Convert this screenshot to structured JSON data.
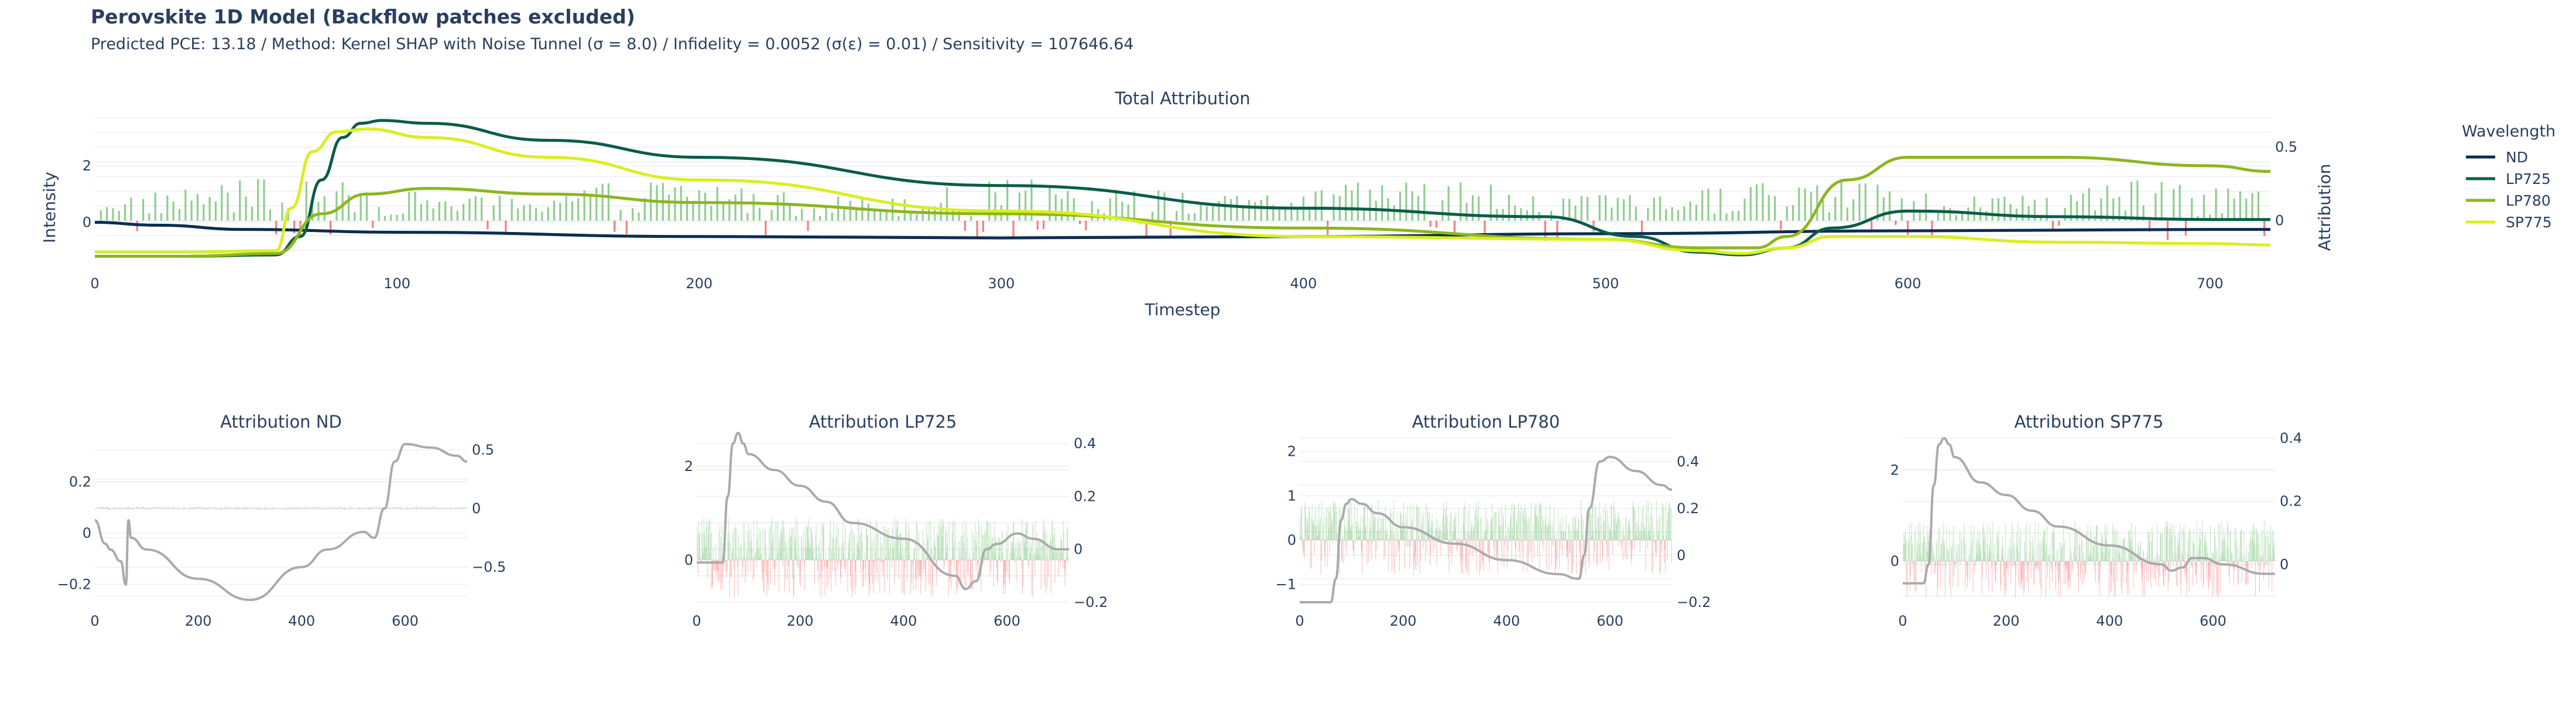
{
  "header": {
    "title": "Perovskite 1D Model (Backflow patches excluded)",
    "subtitle": "Predicted PCE: 13.18 / Method: Kernel SHAP with Noise Tunnel (σ = 8.0) / Infidelity = 0.0052 (σ(ε) = 0.01) / Sensitivity = 107646.64"
  },
  "legend": {
    "title": "Wavelength",
    "position": "right",
    "items": [
      {
        "name": "ND",
        "color": "#0b2d4f"
      },
      {
        "name": "LP725",
        "color": "#0a5c4a"
      },
      {
        "name": "LP780",
        "color": "#8db51f"
      },
      {
        "name": "SP775",
        "color": "#d9ef1e"
      }
    ]
  },
  "colors": {
    "positive_bar": "#7cc47a",
    "negative_bar": "#f06a6a",
    "attribution_line": "#aaaaaa",
    "grid": "#ebedf2"
  },
  "chart_data": [
    {
      "type": "line",
      "title": "Total Attribution",
      "xlabel": "Timestep",
      "ylabel": "Intensity",
      "y2label": "Attribution",
      "xlim": [
        0,
        720
      ],
      "ylim": [
        -1.5,
        3.8
      ],
      "y2lim": [
        -0.3,
        0.72
      ],
      "xticks": [
        0,
        100,
        200,
        300,
        400,
        500,
        600,
        700
      ],
      "yticks": [
        0,
        2
      ],
      "y2ticks": [
        0,
        0.5
      ],
      "grid": true,
      "series": [
        {
          "name": "ND",
          "x": [
            0,
            20,
            50,
            100,
            200,
            300,
            400,
            500,
            600,
            700,
            720
          ],
          "values": [
            0.0,
            -0.1,
            -0.25,
            -0.35,
            -0.5,
            -0.55,
            -0.5,
            -0.4,
            -0.3,
            -0.25,
            -0.25
          ]
        },
        {
          "name": "LP725",
          "x": [
            0,
            30,
            60,
            68,
            75,
            82,
            88,
            95,
            110,
            150,
            200,
            300,
            400,
            480,
            510,
            530,
            545,
            560,
            575,
            600,
            650,
            700,
            720
          ],
          "values": [
            -1.2,
            -1.2,
            -1.15,
            -0.5,
            1.5,
            3.0,
            3.5,
            3.6,
            3.5,
            2.9,
            2.3,
            1.3,
            0.5,
            0.2,
            -0.5,
            -1.05,
            -1.15,
            -0.9,
            -0.2,
            0.4,
            0.2,
            0.1,
            0.1
          ]
        },
        {
          "name": "LP780",
          "x": [
            0,
            30,
            60,
            75,
            90,
            110,
            150,
            200,
            300,
            400,
            500,
            530,
            550,
            560,
            580,
            600,
            650,
            700,
            720
          ],
          "values": [
            -1.2,
            -1.2,
            -1.1,
            0.3,
            1.0,
            1.2,
            1.0,
            0.7,
            0.3,
            -0.2,
            -0.6,
            -0.9,
            -0.9,
            -0.5,
            1.5,
            2.3,
            2.3,
            2.0,
            1.8
          ]
        },
        {
          "name": "SP775",
          "x": [
            0,
            30,
            60,
            65,
            72,
            80,
            90,
            110,
            150,
            200,
            300,
            400,
            500,
            530,
            545,
            560,
            575,
            600,
            650,
            700,
            720
          ],
          "values": [
            -1.05,
            -1.05,
            -1.0,
            0.5,
            2.5,
            3.2,
            3.3,
            3.0,
            2.3,
            1.5,
            0.4,
            -0.5,
            -0.6,
            -1.0,
            -1.1,
            -0.9,
            -0.5,
            -0.5,
            -0.7,
            -0.75,
            -0.8
          ]
        }
      ],
      "attribution": {
        "x_start": 2,
        "x_step": 2,
        "amplitude": 0.26
      }
    },
    {
      "type": "line",
      "title": "Attribution ND",
      "xlim": [
        0,
        720
      ],
      "ylim": [
        -0.27,
        0.37
      ],
      "y2lim": [
        -0.8,
        0.6
      ],
      "xticks": [
        0,
        200,
        400,
        600
      ],
      "yticks": [
        -0.2,
        0,
        0.2
      ],
      "y2ticks": [
        -0.5,
        0,
        0.5
      ],
      "grid": true,
      "attribution": {
        "x_start": 1,
        "x_step": 1,
        "amplitude": 0.12
      },
      "intensity": {
        "x": [
          0,
          20,
          30,
          50,
          60,
          65,
          70,
          100,
          200,
          300,
          400,
          450,
          520,
          540,
          560,
          580,
          600,
          650,
          700,
          720
        ],
        "values": [
          -0.1,
          -0.3,
          -0.35,
          -0.45,
          -0.65,
          -0.1,
          -0.25,
          -0.35,
          -0.6,
          -0.78,
          -0.5,
          -0.35,
          -0.2,
          -0.25,
          0.0,
          0.4,
          0.55,
          0.52,
          0.45,
          0.4
        ]
      }
    },
    {
      "type": "line",
      "title": "Attribution LP725",
      "xlim": [
        0,
        720
      ],
      "ylim": [
        -0.9,
        2.6
      ],
      "y2lim": [
        -0.2,
        0.42
      ],
      "xticks": [
        0,
        200,
        400,
        600
      ],
      "yticks": [
        0,
        2
      ],
      "y2ticks": [
        -0.2,
        0,
        0.2,
        0.4
      ],
      "grid": true,
      "attribution": {
        "x_start": 1,
        "x_step": 1,
        "amplitude": 0.9
      },
      "intensity": {
        "x": [
          0,
          50,
          60,
          70,
          80,
          90,
          100,
          150,
          200,
          250,
          300,
          400,
          500,
          520,
          540,
          560,
          580,
          620,
          650,
          700,
          720
        ],
        "values": [
          -0.05,
          -0.05,
          0.2,
          0.4,
          0.44,
          0.4,
          0.36,
          0.3,
          0.24,
          0.18,
          0.1,
          0.04,
          -0.1,
          -0.15,
          -0.12,
          0.0,
          0.02,
          0.06,
          0.04,
          0.0,
          0.0
        ]
      }
    },
    {
      "type": "line",
      "title": "Attribution LP780",
      "xlim": [
        0,
        720
      ],
      "ylim": [
        -1.4,
        2.3
      ],
      "y2lim": [
        -0.2,
        0.5
      ],
      "xticks": [
        0,
        200,
        400,
        600
      ],
      "yticks": [
        -1,
        0,
        1,
        2
      ],
      "y2ticks": [
        -0.2,
        0,
        0.2,
        0.4
      ],
      "grid": true,
      "attribution": {
        "x_start": 1,
        "x_step": 1,
        "amplitude": 0.9
      },
      "intensity": {
        "x": [
          0,
          60,
          70,
          80,
          90,
          100,
          120,
          150,
          200,
          300,
          400,
          500,
          540,
          550,
          560,
          580,
          600,
          650,
          700,
          720
        ],
        "values": [
          -0.2,
          -0.2,
          -0.1,
          0.15,
          0.22,
          0.24,
          0.22,
          0.18,
          0.12,
          0.05,
          -0.02,
          -0.08,
          -0.1,
          0.0,
          0.2,
          0.4,
          0.42,
          0.36,
          0.3,
          0.28
        ]
      }
    },
    {
      "type": "line",
      "title": "Attribution SP775",
      "xlim": [
        0,
        720
      ],
      "ylim": [
        -0.9,
        2.7
      ],
      "y2lim": [
        -0.12,
        0.4
      ],
      "xticks": [
        0,
        200,
        400,
        600
      ],
      "yticks": [
        0,
        2
      ],
      "y2ticks": [
        0,
        0.2,
        0.4
      ],
      "grid": true,
      "attribution": {
        "x_start": 1,
        "x_step": 1,
        "amplitude": 0.9
      },
      "intensity": {
        "x": [
          0,
          40,
          50,
          60,
          70,
          80,
          90,
          100,
          150,
          200,
          250,
          300,
          400,
          500,
          520,
          540,
          560,
          580,
          620,
          700,
          720
        ],
        "values": [
          -0.06,
          -0.06,
          0.0,
          0.25,
          0.38,
          0.4,
          0.38,
          0.34,
          0.26,
          0.22,
          0.17,
          0.12,
          0.06,
          0.0,
          -0.02,
          -0.01,
          0.02,
          0.02,
          0.0,
          -0.03,
          -0.03
        ]
      }
    }
  ]
}
